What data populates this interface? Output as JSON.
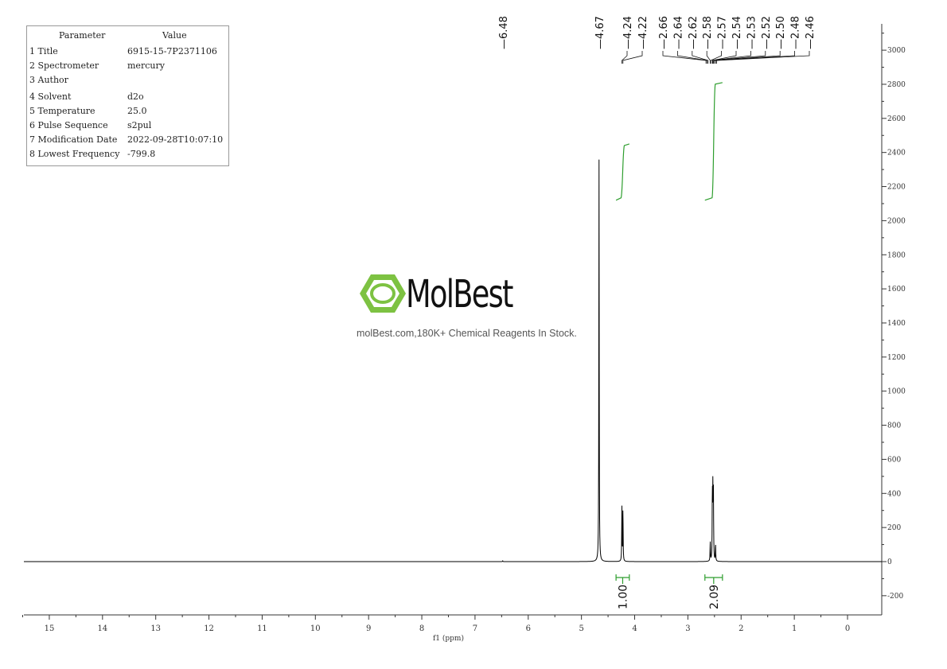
{
  "parameters": {
    "header": [
      "Parameter",
      "Value"
    ],
    "rows": [
      [
        "1 Title",
        "6915-15-7P2371106"
      ],
      [
        "2 Spectrometer",
        "mercury"
      ],
      [
        "3 Author",
        ""
      ],
      [
        "4 Solvent",
        "d2o"
      ],
      [
        "5 Temperature",
        "25.0"
      ],
      [
        "6 Pulse Sequence",
        "s2pul"
      ],
      [
        "7 Modification Date",
        "2022-09-28T10:07:10"
      ],
      [
        "8 Lowest Frequency",
        "-799.8"
      ]
    ]
  },
  "watermark": {
    "brand": "MolBest",
    "tagline": "molBest.com,180K+ Chemical Reagents In Stock.",
    "color": "#7dc242"
  },
  "chart_data": {
    "type": "line",
    "title": "",
    "xlabel": "f1 (ppm)",
    "ylabel": "",
    "xlim": [
      15.5,
      -0.6
    ],
    "ylim": [
      -300,
      3150
    ],
    "x_ticks": [
      15,
      14,
      13,
      12,
      11,
      10,
      9,
      8,
      7,
      6,
      5,
      4,
      3,
      2,
      1,
      0
    ],
    "y_ticks": [
      -200,
      0,
      200,
      400,
      600,
      800,
      1000,
      1200,
      1400,
      1600,
      1800,
      2000,
      2200,
      2400,
      2600,
      2800,
      3000
    ],
    "peaks": [
      {
        "ppm": 6.48,
        "intensity": 5
      },
      {
        "ppm": 4.67,
        "intensity": 2394
      },
      {
        "ppm": 4.24,
        "intensity": 320
      },
      {
        "ppm": 4.22,
        "intensity": 300
      },
      {
        "ppm": 2.58,
        "intensity": 110
      },
      {
        "ppm": 2.54,
        "intensity": 400
      },
      {
        "ppm": 2.53,
        "intensity": 415
      },
      {
        "ppm": 2.52,
        "intensity": 380
      },
      {
        "ppm": 2.48,
        "intensity": 100
      }
    ],
    "peak_labels": [
      "6.48",
      "4.67",
      "4.24",
      "4.22",
      "2.66",
      "2.64",
      "2.62",
      "2.58",
      "2.57",
      "2.54",
      "2.53",
      "2.52",
      "2.50",
      "2.48",
      "2.46"
    ],
    "integrals": [
      {
        "from": 4.35,
        "to": 4.1,
        "value": "1.00",
        "curve_start": 2120,
        "curve_end": 2450
      },
      {
        "from": 2.68,
        "to": 2.35,
        "value": "2.09",
        "curve_start": 2120,
        "curve_end": 2810
      }
    ],
    "colors": {
      "spectrum": "#000000",
      "integral": "#2e9e2e"
    },
    "grid": false
  }
}
